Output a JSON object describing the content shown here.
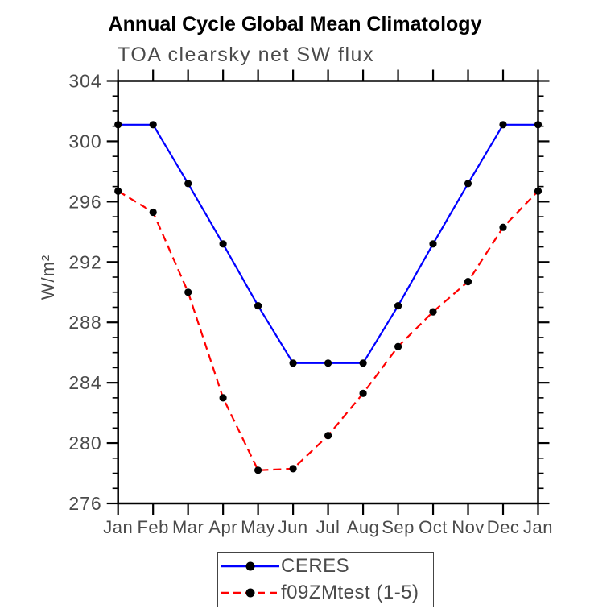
{
  "chart": {
    "title": "Annual Cycle Global Mean Climatology",
    "subtitle": "TOA clearsky net SW flux",
    "ylabel": "W/m²"
  },
  "chart_data": {
    "type": "line",
    "title": "Annual Cycle Global Mean Climatology",
    "subtitle": "TOA clearsky net SW flux",
    "xlabel": "",
    "ylabel": "W/m²",
    "x_categories": [
      "Jan",
      "Feb",
      "Mar",
      "Apr",
      "May",
      "Jun",
      "Jul",
      "Aug",
      "Sep",
      "Oct",
      "Nov",
      "Dec",
      "Jan"
    ],
    "ylim": [
      276,
      304
    ],
    "y_major_ticks": [
      276,
      280,
      284,
      288,
      292,
      296,
      300,
      304
    ],
    "y_minor_step": 1,
    "grid": false,
    "legend_position": "bottom-center",
    "axis_color": "#000000",
    "tick_label_color": "#4a4a4a",
    "series": [
      {
        "name": "CERES",
        "color": "#0000ff",
        "style": "solid",
        "marker": "circle",
        "marker_color": "#000000",
        "values": [
          301.1,
          301.1,
          297.2,
          293.2,
          289.1,
          285.3,
          285.3,
          285.3,
          289.1,
          293.2,
          297.2,
          301.1,
          301.1
        ]
      },
      {
        "name": "f09ZMtest (1-5)",
        "color": "#ff0000",
        "style": "dashed",
        "marker": "circle",
        "marker_color": "#000000",
        "values": [
          296.7,
          295.3,
          290.0,
          283.0,
          278.2,
          278.3,
          280.5,
          283.3,
          286.4,
          288.7,
          290.7,
          294.3,
          296.7
        ]
      }
    ]
  }
}
